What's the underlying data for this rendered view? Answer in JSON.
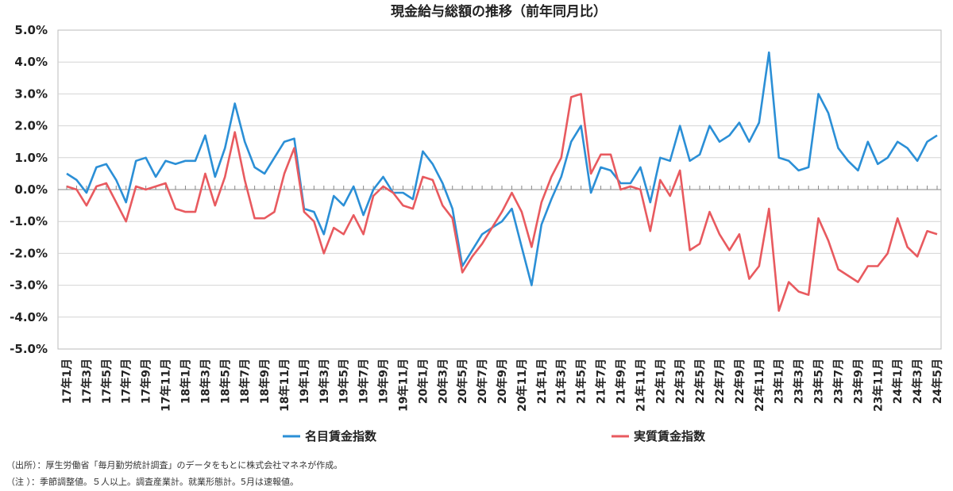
{
  "chart_data": {
    "type": "line",
    "title": "現金給与総額の推移（前年同月比）",
    "y_ticks": [
      "5.0%",
      "4.0%",
      "3.0%",
      "2.0%",
      "1.0%",
      "0.0%",
      "-1.0%",
      "-2.0%",
      "-3.0%",
      "-4.0%",
      "-5.0%"
    ],
    "ylim": [
      -5,
      5
    ],
    "grid": "horizontal",
    "legend_position": "bottom",
    "x_labels": [
      "17年1月",
      "17年3月",
      "17年5月",
      "17年7月",
      "17年9月",
      "17年11月",
      "18年1月",
      "18年3月",
      "18年5月",
      "18年7月",
      "18年9月",
      "18年11月",
      "19年1月",
      "19年3月",
      "19年5月",
      "19年7月",
      "19年9月",
      "19年11月",
      "20年1月",
      "20年3月",
      "20年5月",
      "20年7月",
      "20年9月",
      "20年11月",
      "21年1月",
      "21年3月",
      "21年5月",
      "21年7月",
      "21年9月",
      "21年11月",
      "22年1月",
      "22年3月",
      "22年5月",
      "22年7月",
      "22年9月",
      "22年11月",
      "23年1月",
      "23年3月",
      "23年5月",
      "23年7月",
      "23年9月",
      "23年11月",
      "24年1月",
      "24年3月",
      "24年5月"
    ],
    "series": [
      {
        "name": "名目賃金指数",
        "color": "#2b8fd6",
        "values": [
          0.5,
          0.3,
          -0.1,
          0.7,
          0.8,
          0.3,
          -0.4,
          0.9,
          1.0,
          0.4,
          0.9,
          0.8,
          0.9,
          0.9,
          1.7,
          0.4,
          1.3,
          2.7,
          1.5,
          0.7,
          0.5,
          1.0,
          1.5,
          1.6,
          -0.6,
          -0.7,
          -1.4,
          -0.2,
          -0.5,
          0.1,
          -0.8,
          0.0,
          0.4,
          -0.1,
          -0.1,
          -0.3,
          1.2,
          0.8,
          0.2,
          -0.6,
          -2.4,
          -1.9,
          -1.4,
          -1.2,
          -1.0,
          -0.6,
          -1.8,
          -3.0,
          -1.1,
          -0.3,
          0.4,
          1.5,
          2.0,
          -0.1,
          0.7,
          0.6,
          0.2,
          0.2,
          0.7,
          -0.4,
          1.0,
          0.9,
          2.0,
          0.9,
          1.1,
          2.0,
          1.5,
          1.7,
          2.1,
          1.5,
          2.1,
          4.3,
          1.0,
          0.9,
          0.6,
          0.7,
          3.0,
          2.4,
          1.3,
          0.9,
          0.6,
          1.5,
          0.8,
          1.0,
          1.5,
          1.3,
          0.9,
          1.5,
          1.7
        ]
      },
      {
        "name": "実質賃金指数",
        "color": "#e85a5f",
        "values": [
          0.1,
          0.0,
          -0.5,
          0.1,
          0.2,
          -0.4,
          -1.0,
          0.1,
          0.0,
          0.1,
          0.2,
          -0.6,
          -0.7,
          -0.7,
          0.5,
          -0.5,
          0.4,
          1.8,
          0.3,
          -0.9,
          -0.9,
          -0.7,
          0.5,
          1.3,
          -0.7,
          -1.0,
          -2.0,
          -1.2,
          -1.4,
          -0.8,
          -1.4,
          -0.2,
          0.1,
          -0.1,
          -0.5,
          -0.6,
          0.4,
          0.3,
          -0.5,
          -0.9,
          -2.6,
          -2.1,
          -1.7,
          -1.2,
          -0.7,
          -0.1,
          -0.7,
          -1.8,
          -0.4,
          0.4,
          1.0,
          2.9,
          3.0,
          0.5,
          1.1,
          1.1,
          0.0,
          0.1,
          0.0,
          -1.3,
          0.3,
          -0.2,
          0.6,
          -1.9,
          -1.7,
          -0.7,
          -1.4,
          -1.9,
          -1.4,
          -2.8,
          -2.4,
          -0.6,
          -3.8,
          -2.9,
          -3.2,
          -3.3,
          -0.9,
          -1.6,
          -2.5,
          -2.7,
          -2.9,
          -2.4,
          -2.4,
          -2.0,
          -0.9,
          -1.8,
          -2.1,
          -1.3,
          -1.4
        ]
      }
    ]
  },
  "notes": {
    "source": "（出所）：厚生労働省「毎月勤労統計調査」のデータをもとに株式会社マネネが作成。",
    "note": "（注 ）：季節調整値。５人以上。調査産業計。就業形態計。5月は速報値。"
  }
}
